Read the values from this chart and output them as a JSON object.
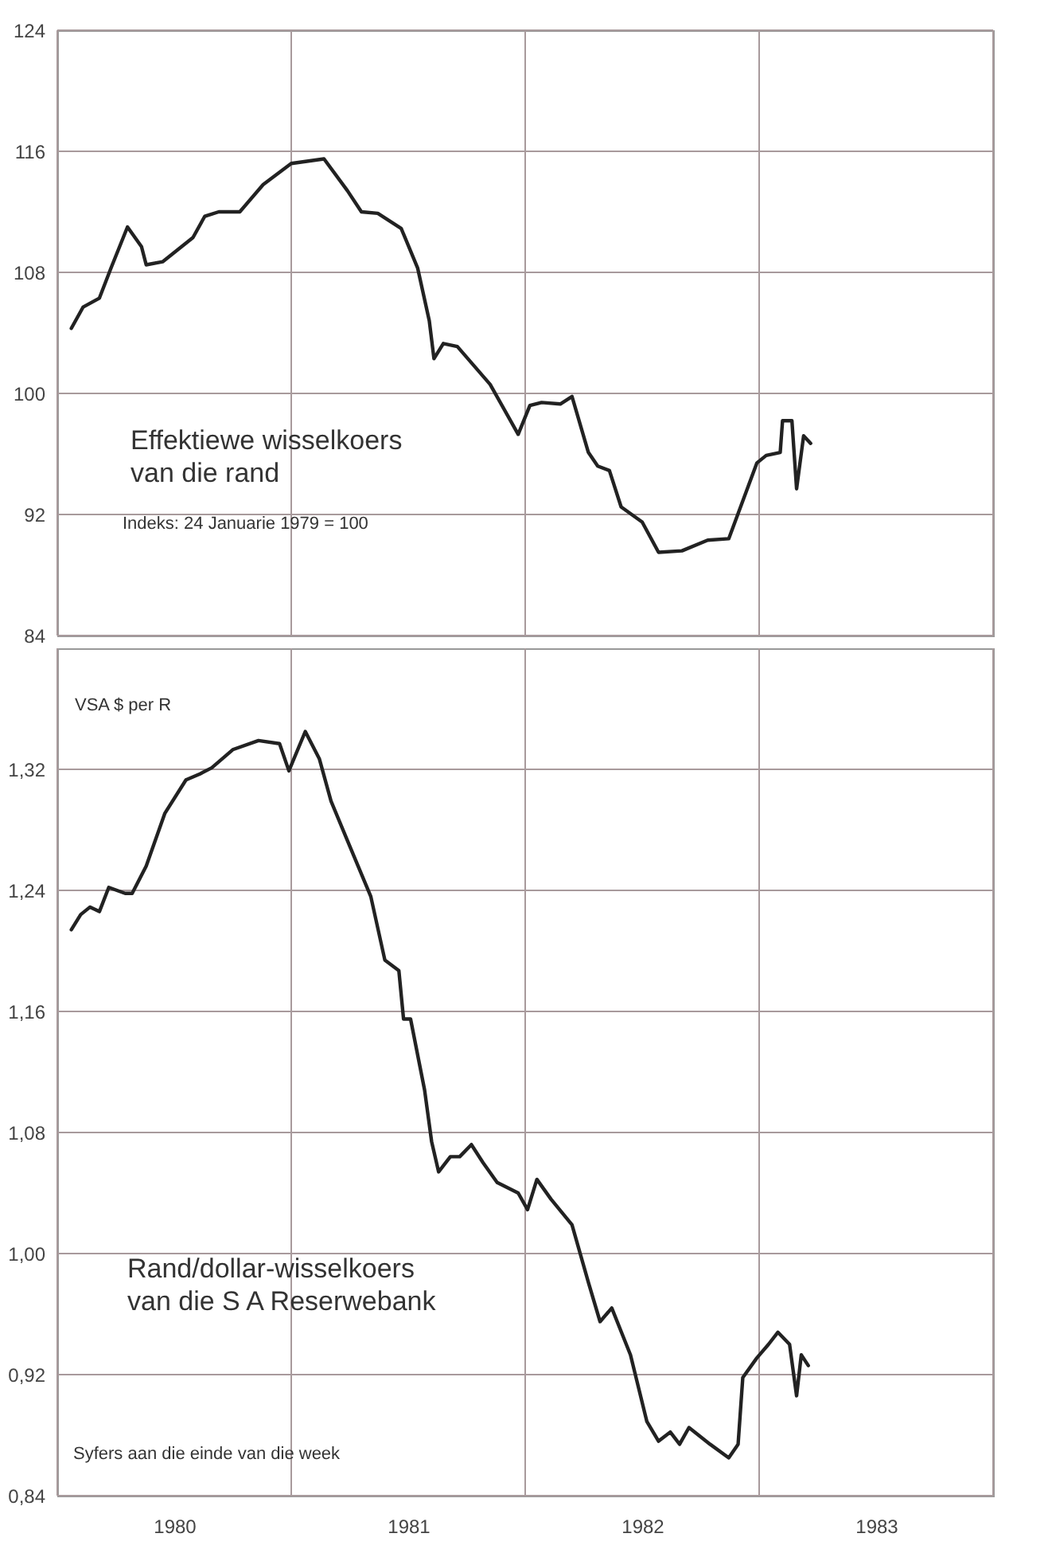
{
  "chart_data": [
    {
      "type": "line",
      "xlim": [
        1980,
        1984
      ],
      "xticks": [
        {
          "value": 1980,
          "label": null
        },
        {
          "value": 1981,
          "label": null
        },
        {
          "value": 1982,
          "label": null
        },
        {
          "value": 1983,
          "label": null
        },
        {
          "value": 1984,
          "label": null
        }
      ],
      "ylim": [
        84,
        124
      ],
      "yticks": [
        84,
        92,
        100,
        108,
        116,
        124
      ],
      "grid": true,
      "tick_labels": "y",
      "annotations": [
        "Effektiewe wisselkoers\nvan die rand",
        "Indeks: 24 Januarie 1979 = 100"
      ],
      "x": [
        1980.06,
        1980.11,
        1980.18,
        1980.23,
        1980.3,
        1980.36,
        1980.38,
        1980.45,
        1980.58,
        1980.63,
        1980.69,
        1980.78,
        1980.88,
        1981.0,
        1981.14,
        1981.24,
        1981.3,
        1981.37,
        1981.47,
        1981.54,
        1981.59,
        1981.61,
        1981.65,
        1981.71,
        1981.85,
        1981.97,
        1982.02,
        1982.07,
        1982.15,
        1982.2,
        1982.27,
        1982.31,
        1982.36,
        1982.41,
        1982.5,
        1982.57,
        1982.67,
        1982.78,
        1982.87,
        1982.99,
        1983.03,
        1983.09,
        1983.1,
        1983.14,
        1983.16,
        1983.19,
        1983.22
      ],
      "series": [
        {
          "color": "#222222",
          "values": [
            104.3,
            105.7,
            106.3,
            108.3,
            111.0,
            109.7,
            108.5,
            108.7,
            110.3,
            111.7,
            112.0,
            112.0,
            113.8,
            115.2,
            115.5,
            113.4,
            112.0,
            111.9,
            110.9,
            108.3,
            104.8,
            102.3,
            103.3,
            103.1,
            100.6,
            97.3,
            99.2,
            99.4,
            99.3,
            99.8,
            96.1,
            95.2,
            94.9,
            92.5,
            91.5,
            89.5,
            89.6,
            90.3,
            90.4,
            95.4,
            95.9,
            96.1,
            98.2,
            98.2,
            93.7,
            97.2,
            96.7
          ]
        }
      ]
    },
    {
      "type": "line",
      "xlim": [
        1980,
        1984
      ],
      "xticks": [
        {
          "value": 1980,
          "label": null
        },
        {
          "value": 1980.5,
          "label": "1980"
        },
        {
          "value": 1981,
          "label": null
        },
        {
          "value": 1981.5,
          "label": "1981"
        },
        {
          "value": 1982,
          "label": null
        },
        {
          "value": 1982.5,
          "label": "1982"
        },
        {
          "value": 1983,
          "label": null
        },
        {
          "value": 1983.5,
          "label": "1983"
        },
        {
          "value": 1984,
          "label": null
        }
      ],
      "ylim": [
        0.84,
        1.4
      ],
      "yticks": [
        {
          "value": 0.84,
          "label": "0,84"
        },
        {
          "value": 0.92,
          "label": "0,92"
        },
        {
          "value": 1.0,
          "label": "1,00"
        },
        {
          "value": 1.08,
          "label": "1,08"
        },
        {
          "value": 1.16,
          "label": "1,16"
        },
        {
          "value": 1.24,
          "label": "1,24"
        },
        {
          "value": 1.32,
          "label": "1,32"
        }
      ],
      "grid": true,
      "annotations": [
        "VSA $ per R",
        "Rand/dollar-wisselkoers\nvan die S A Reserwebank",
        "Syfers aan die einde van die week"
      ],
      "x": [
        1980.06,
        1980.1,
        1980.14,
        1980.18,
        1980.22,
        1980.29,
        1980.32,
        1980.38,
        1980.46,
        1980.55,
        1980.61,
        1980.66,
        1980.75,
        1980.86,
        1980.95,
        1980.99,
        1981.06,
        1981.12,
        1981.17,
        1981.24,
        1981.34,
        1981.4,
        1981.46,
        1981.48,
        1981.51,
        1981.57,
        1981.6,
        1981.63,
        1981.68,
        1981.72,
        1981.77,
        1981.82,
        1981.88,
        1981.97,
        1982.01,
        1982.05,
        1982.11,
        1982.2,
        1982.27,
        1982.32,
        1982.37,
        1982.45,
        1982.52,
        1982.57,
        1982.62,
        1982.66,
        1982.7,
        1982.79,
        1982.87,
        1982.91,
        1982.93,
        1982.99,
        1983.04,
        1983.08,
        1983.13,
        1983.16,
        1983.18,
        1983.21
      ],
      "series": [
        {
          "color": "#222222",
          "values": [
            1.214,
            1.224,
            1.229,
            1.226,
            1.242,
            1.238,
            1.238,
            1.256,
            1.291,
            1.313,
            1.317,
            1.321,
            1.333,
            1.339,
            1.337,
            1.319,
            1.345,
            1.327,
            1.299,
            1.273,
            1.236,
            1.194,
            1.187,
            1.155,
            1.155,
            1.108,
            1.074,
            1.054,
            1.064,
            1.064,
            1.072,
            1.06,
            1.047,
            1.04,
            1.029,
            1.049,
            1.036,
            1.019,
            0.981,
            0.955,
            0.964,
            0.933,
            0.889,
            0.876,
            0.882,
            0.874,
            0.885,
            0.874,
            0.865,
            0.874,
            0.918,
            0.931,
            0.94,
            0.948,
            0.94,
            0.906,
            0.933,
            0.926
          ]
        }
      ]
    }
  ]
}
